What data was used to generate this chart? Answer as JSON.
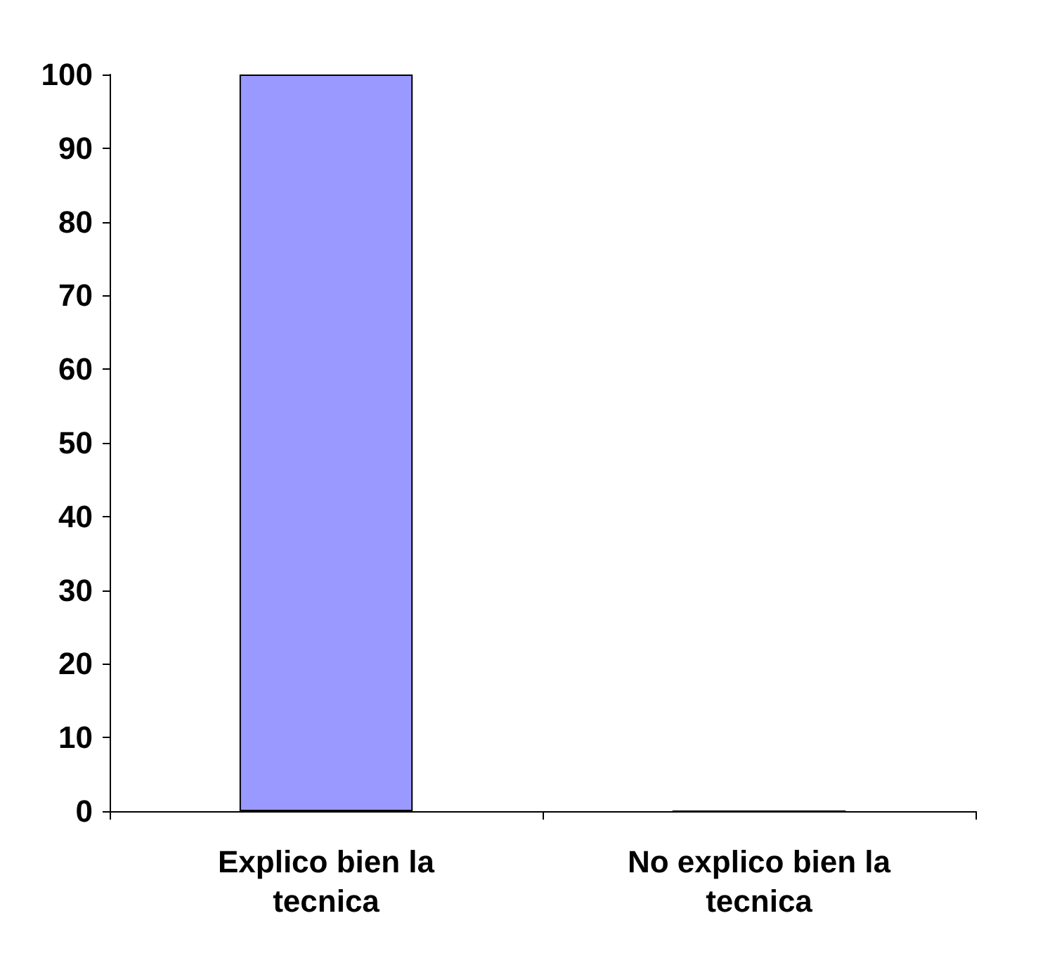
{
  "chart_data": {
    "type": "bar",
    "categories": [
      "Explico bien la tecnica",
      "No explico bien la tecnica"
    ],
    "values": [
      100,
      0
    ],
    "color": "#9999ff",
    "ylim": [
      0,
      100
    ],
    "yticks": [
      0,
      10,
      20,
      30,
      40,
      50,
      60,
      70,
      80,
      90,
      100
    ],
    "grid": false
  }
}
